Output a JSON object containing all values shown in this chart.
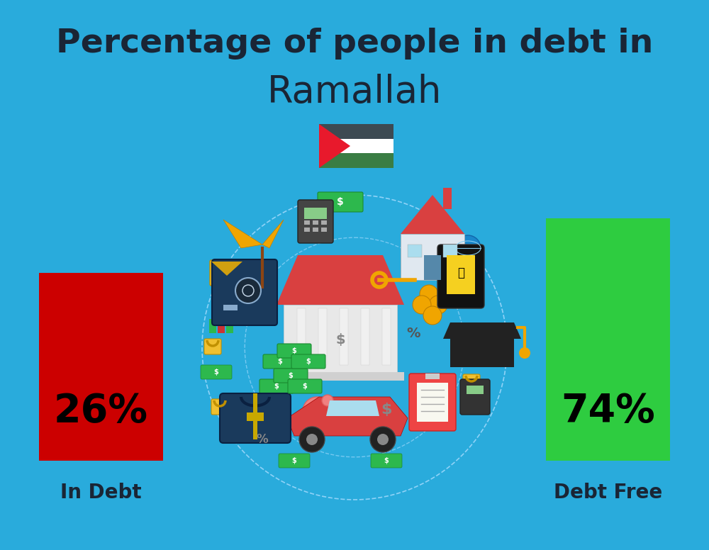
{
  "title_line1": "Percentage of people in debt in",
  "title_line2": "Ramallah",
  "background_color": "#29ABDC",
  "bar1_value": 26,
  "bar1_label": "26%",
  "bar1_color": "#CC0000",
  "bar1_caption": "In Debt",
  "bar2_value": 74,
  "bar2_label": "74%",
  "bar2_color": "#2ECC40",
  "bar2_caption": "Debt Free",
  "title_color": "#1a2535",
  "caption_color": "#1a2535",
  "pct_color": "#000000",
  "title_fontsize": 34,
  "subtitle_fontsize": 38,
  "pct_fontsize": 40,
  "caption_fontsize": 20,
  "flag_black": "#3d4a52",
  "flag_white": "#ffffff",
  "flag_green": "#3a7d44",
  "flag_red": "#e8192c",
  "circle_color": "#aaddff",
  "bank_roof": "#d94040",
  "bank_body": "#e8e8e8",
  "bank_column": "#f0f0f0",
  "house_roof": "#d94040",
  "house_body": "#e8e8e8",
  "safe_color": "#1a3a5c",
  "money_green": "#2db84d",
  "gold_color": "#f0a500",
  "car_color": "#d94040",
  "bag_color": "#1a3a5c",
  "grad_cap": "#222222",
  "phone_color": "#111111",
  "phone_screen": "#f5d020"
}
